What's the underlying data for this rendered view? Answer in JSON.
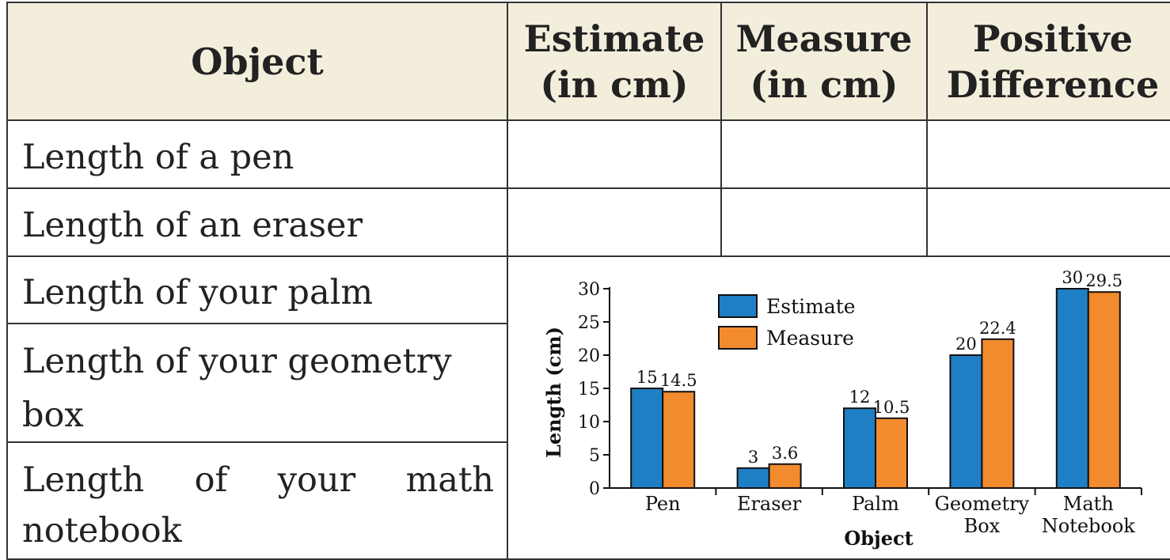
{
  "table": {
    "headers": [
      [
        "Object"
      ],
      [
        "Estimate",
        "(in cm)"
      ],
      [
        "Measure",
        "(in cm)"
      ],
      [
        "Positive",
        "Difference"
      ]
    ],
    "rows": [
      [
        "Length of a pen"
      ],
      [
        "Length of an eraser"
      ],
      [
        "Length of your palm"
      ],
      [
        "Length of your geometry",
        "box"
      ],
      [
        [
          "Length",
          "of",
          "your",
          "math"
        ],
        "notebook"
      ]
    ]
  },
  "chart_data": {
    "type": "bar",
    "categories": [
      [
        "Pen"
      ],
      [
        "Eraser"
      ],
      [
        "Palm"
      ],
      [
        "Geometry",
        "Box"
      ],
      [
        "Math",
        "Notebook"
      ]
    ],
    "series": [
      {
        "name": "Estimate",
        "values": [
          15,
          3,
          12,
          20,
          30
        ],
        "color": "#1f7fc4",
        "labels": [
          "15",
          "3",
          "12",
          "20",
          "30"
        ]
      },
      {
        "name": "Measure",
        "values": [
          14.5,
          3.6,
          10.5,
          22.4,
          29.5
        ],
        "color": "#f28a2e",
        "labels": [
          "14.5",
          "3.6",
          "10.5",
          "22.4",
          "29.5"
        ]
      }
    ],
    "xlabel": "Object",
    "ylabel": "Length (cm)",
    "ylim": [
      0,
      30
    ],
    "yticks": [
      0,
      5,
      10,
      15,
      20,
      25,
      30
    ],
    "legend": "top-left",
    "grid": false
  }
}
